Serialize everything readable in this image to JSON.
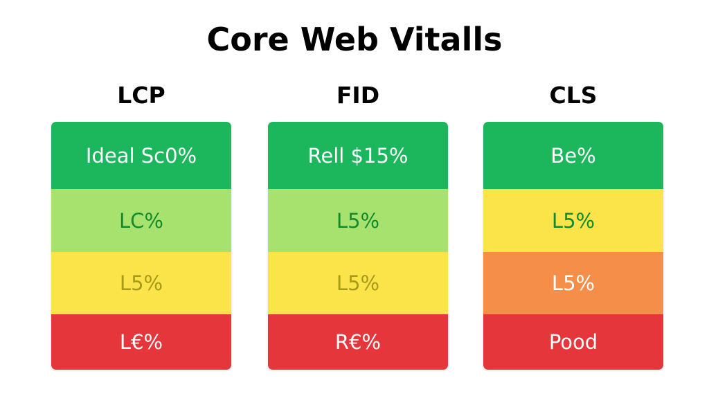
{
  "title": "Core Web Vitalls",
  "colors": {
    "dark_green": "#1cb65c",
    "light_green": "#a8e26e",
    "yellow": "#fbe34a",
    "orange": "#f58e48",
    "red": "#e5363b",
    "text_white": "#ffffff",
    "text_green": "#138a2e",
    "text_olive": "#a79a18"
  },
  "columns": [
    {
      "heading": "LCP",
      "bands": [
        {
          "label": "Ideal Sc0%",
          "bg": "#1cb65c",
          "fg": "#ffffff"
        },
        {
          "label": "LC%",
          "bg": "#a8e26e",
          "fg": "#138a2e"
        },
        {
          "label": "L5%",
          "bg": "#fbe34a",
          "fg": "#a79a18"
        },
        {
          "label": "L€%",
          "bg": "#e5363b",
          "fg": "#ffffff"
        }
      ]
    },
    {
      "heading": "FID",
      "bands": [
        {
          "label": "Rell $15%",
          "bg": "#1cb65c",
          "fg": "#ffffff"
        },
        {
          "label": "L5%",
          "bg": "#a8e26e",
          "fg": "#138a2e"
        },
        {
          "label": "L5%",
          "bg": "#fbe34a",
          "fg": "#a79a18"
        },
        {
          "label": "R€%",
          "bg": "#e5363b",
          "fg": "#ffffff"
        }
      ]
    },
    {
      "heading": "CLS",
      "bands": [
        {
          "label": "Be%",
          "bg": "#1cb65c",
          "fg": "#ffffff"
        },
        {
          "label": "L5%",
          "bg": "#fbe34a",
          "fg": "#138a2e"
        },
        {
          "label": "L5%",
          "bg": "#f58e48",
          "fg": "#ffffff"
        },
        {
          "label": "Pood",
          "bg": "#e5363b",
          "fg": "#ffffff"
        }
      ]
    }
  ]
}
